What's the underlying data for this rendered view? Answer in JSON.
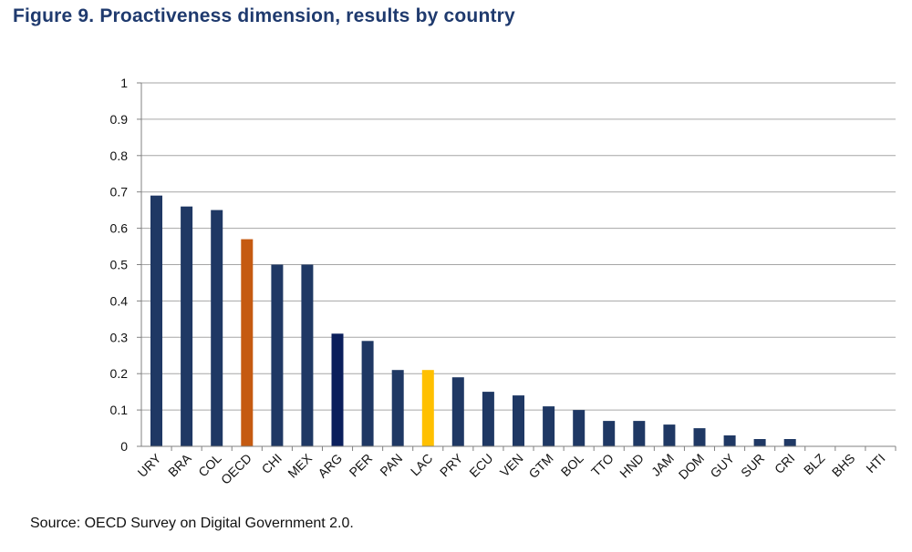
{
  "figure": {
    "title": "Figure  9. Proactiveness dimension, results by country",
    "source": "Source: OECD Survey on Digital Government 2.0."
  },
  "chart_data": {
    "type": "bar",
    "title": "Figure  9. Proactiveness dimension, results by country",
    "xlabel": "",
    "ylabel": "",
    "ylim": [
      0,
      1
    ],
    "yticks": [
      "0",
      "0.1",
      "0.2",
      "0.3",
      "0.4",
      "0.5",
      "0.6",
      "0.7",
      "0.8",
      "0.9",
      "1"
    ],
    "grid": true,
    "legend": "none",
    "categories": [
      "URY",
      "BRA",
      "COL",
      "OECD",
      "CHI",
      "MEX",
      "ARG",
      "PER",
      "PAN",
      "LAC",
      "PRY",
      "ECU",
      "VEN",
      "GTM",
      "BOL",
      "TTO",
      "HND",
      "JAM",
      "DOM",
      "GUY",
      "SUR",
      "CRI",
      "BLZ",
      "BHS",
      "HTI"
    ],
    "values": [
      0.69,
      0.66,
      0.65,
      0.57,
      0.5,
      0.5,
      0.31,
      0.29,
      0.21,
      0.21,
      0.19,
      0.15,
      0.14,
      0.11,
      0.1,
      0.07,
      0.07,
      0.06,
      0.05,
      0.03,
      0.02,
      0.02,
      0,
      0,
      0
    ],
    "colors": {
      "default": "#1f3864",
      "OECD": "#c55a11",
      "ARG": "#0b1f5c",
      "LAC": "#ffc000",
      "grid": "#a6a6a6",
      "axis": "#808080"
    }
  }
}
